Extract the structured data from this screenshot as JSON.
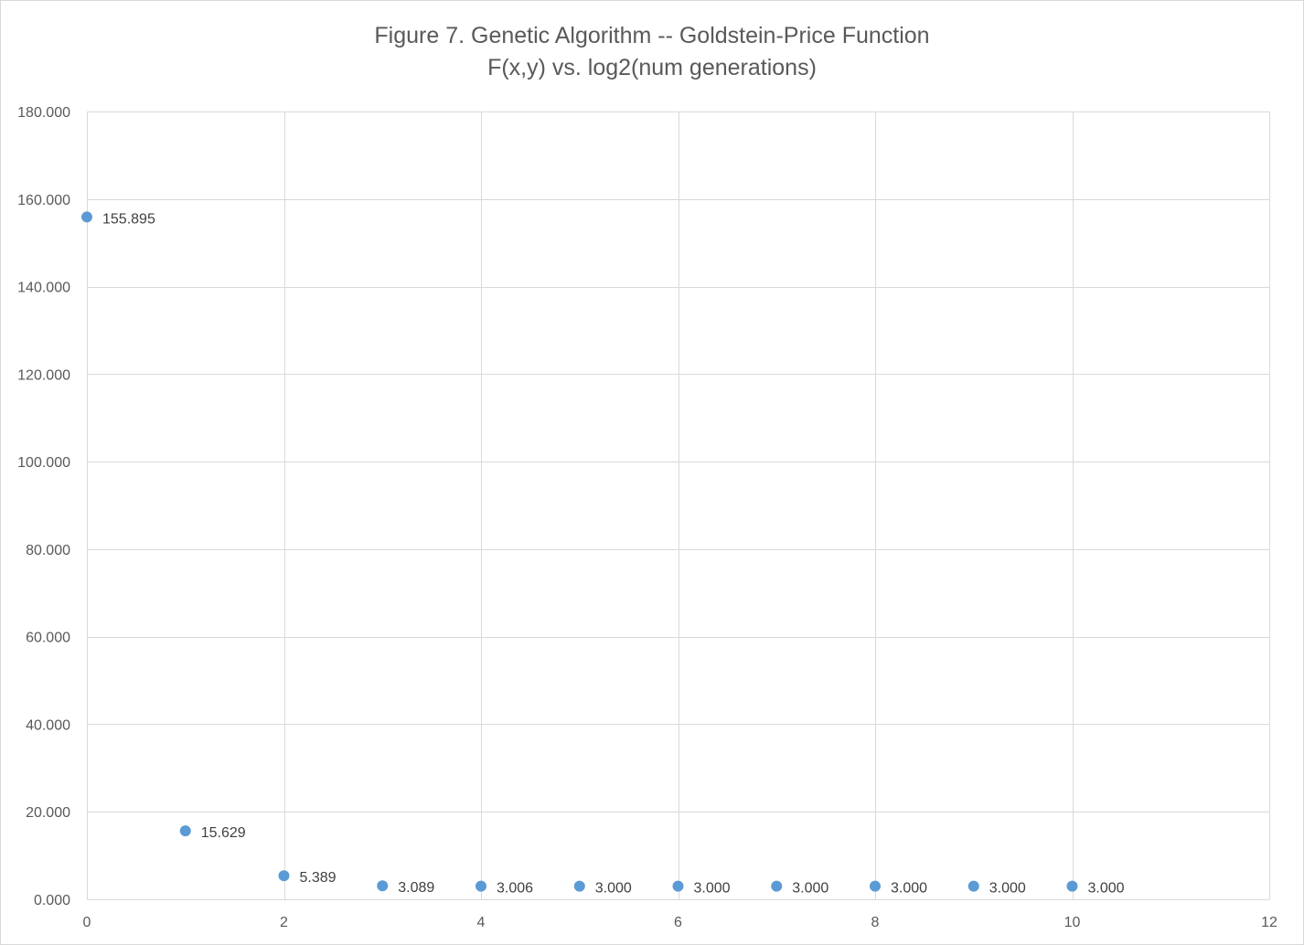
{
  "chart_data": {
    "type": "scatter",
    "title": "Figure 7. Genetic Algorithm -- Goldstein-Price Function",
    "subtitle": "F(x,y) vs. log2(num generations)",
    "xlabel": "",
    "ylabel": "",
    "xlim": [
      0,
      12
    ],
    "ylim": [
      0,
      180
    ],
    "x_ticks": [
      0,
      2,
      4,
      6,
      8,
      10,
      12
    ],
    "y_ticks": [
      0,
      20,
      40,
      60,
      80,
      100,
      120,
      140,
      160,
      180
    ],
    "y_tick_labels": [
      "0.000",
      "20.000",
      "40.000",
      "60.000",
      "80.000",
      "100.000",
      "120.000",
      "140.000",
      "160.000",
      "180.000"
    ],
    "grid": true,
    "legend": "none",
    "marker_color": "#5b9bd5",
    "x": [
      0,
      1,
      2,
      3,
      4,
      5,
      6,
      7,
      8,
      9,
      10
    ],
    "y": [
      155.895,
      15.629,
      5.389,
      3.089,
      3.006,
      3.0,
      3.0,
      3.0,
      3.0,
      3.0,
      3.0
    ],
    "data_labels": [
      "155.895",
      "15.629",
      "5.389",
      "3.089",
      "3.006",
      "3.000",
      "3.000",
      "3.000",
      "3.000",
      "3.000",
      "3.000"
    ]
  }
}
